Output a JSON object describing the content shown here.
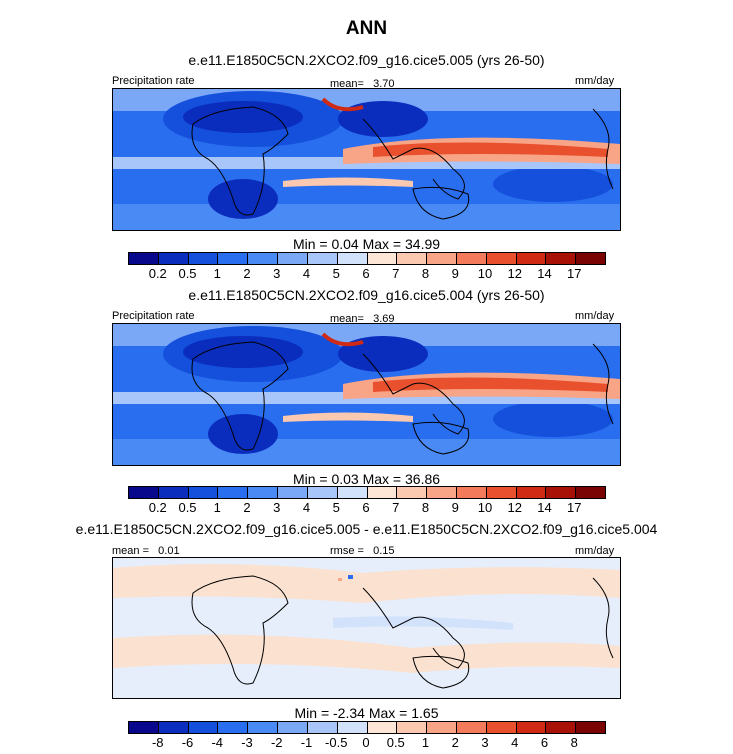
{
  "title": "ANN",
  "units": "mm/day",
  "panels": [
    {
      "case": "e.e11.E1850C5CN.2XCO2.f09_g16.cice5.005 (yrs 26-50)",
      "variable": "Precipitation rate",
      "stat1_label": "mean=",
      "stat1_value": "3.70",
      "min_label": "Min =",
      "min_value": "0.04",
      "max_label": "Max =",
      "max_value": "34.99",
      "levels": [
        "0.2",
        "0.5",
        "1",
        "2",
        "3",
        "4",
        "5",
        "6",
        "7",
        "8",
        "9",
        "10",
        "12",
        "14",
        "17"
      ]
    },
    {
      "case": "e.e11.E1850C5CN.2XCO2.f09_g16.cice5.004 (yrs 26-50)",
      "variable": "Precipitation rate",
      "stat1_label": "mean=",
      "stat1_value": "3.69",
      "min_label": "Min =",
      "min_value": "0.03",
      "max_label": "Max =",
      "max_value": "36.86",
      "levels": [
        "0.2",
        "0.5",
        "1",
        "2",
        "3",
        "4",
        "5",
        "6",
        "7",
        "8",
        "9",
        "10",
        "12",
        "14",
        "17"
      ]
    },
    {
      "case": "e.e11.E1850C5CN.2XCO2.f09_g16.cice5.005 - e.e11.E1850C5CN.2XCO2.f09_g16.cice5.004",
      "stat1_label": "mean =",
      "stat1_value": "0.01",
      "stat2_label": "rmse =",
      "stat2_value": "0.15",
      "min_label": "Min =",
      "min_value": "-2.34",
      "max_label": "Max =",
      "max_value": "1.65",
      "levels": [
        "-8",
        "-6",
        "-4",
        "-3",
        "-2",
        "-1",
        "-0.5",
        "0",
        "0.5",
        "1",
        "2",
        "3",
        "4",
        "6",
        "8"
      ]
    }
  ],
  "palette": [
    "#08088c",
    "#0a2dbe",
    "#1450dc",
    "#2a6ef0",
    "#4a8af5",
    "#7aa8f7",
    "#a8c6fa",
    "#d2e2fb",
    "#fde6d6",
    "#fbc8b0",
    "#f8a486",
    "#f37a5a",
    "#e8502e",
    "#d02a14",
    "#a81206",
    "#7a0403"
  ],
  "colors": {
    "ocean": "#2f6fe8",
    "land": "#d6e4fb",
    "itcz": "#e8502e",
    "diff_bg": "#e8eefa",
    "diff_warm": "#fbe1cf"
  }
}
